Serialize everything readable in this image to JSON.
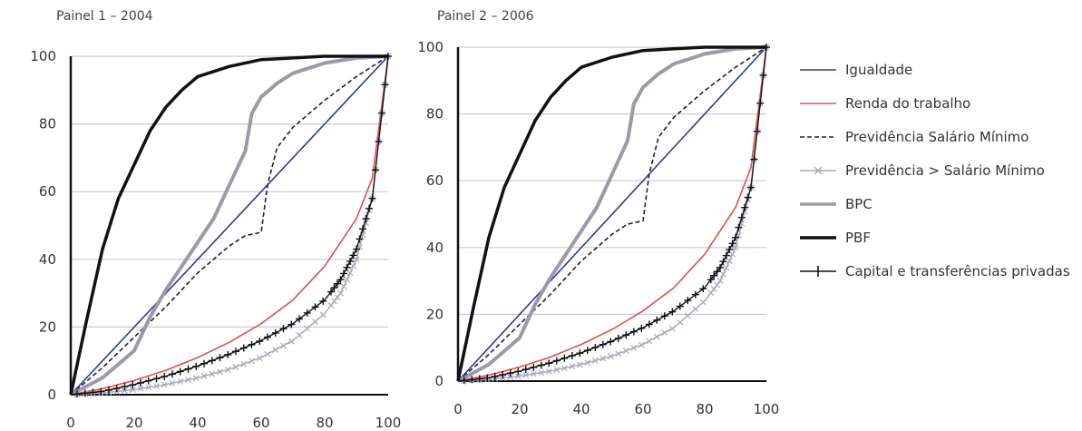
{
  "panels": [
    {
      "title": "Painel 1 – 2004"
    },
    {
      "title": "Painel 2 – 2006"
    }
  ],
  "chart_data": [
    {
      "type": "line",
      "title": "Painel 1 – 2004",
      "xlabel": "",
      "ylabel": "",
      "xlim": [
        0,
        100
      ],
      "ylim": [
        0,
        100
      ],
      "x_ticks": [
        0,
        20,
        40,
        60,
        80,
        100
      ],
      "y_ticks": [
        0,
        20,
        40,
        60,
        80,
        100
      ],
      "grid": true,
      "series": [
        {
          "name": "Igualdade",
          "x": [
            0,
            100
          ],
          "y": [
            0,
            100
          ]
        },
        {
          "name": "Renda do trabalho",
          "x": [
            0,
            10,
            20,
            30,
            40,
            50,
            60,
            70,
            80,
            90,
            95,
            100
          ],
          "y": [
            0,
            1.8,
            4.2,
            7.2,
            11,
            15.5,
            21,
            28,
            38,
            52,
            64,
            100
          ]
        },
        {
          "name": "Previdência Salário Mínimo",
          "x": [
            0,
            10,
            20,
            30,
            40,
            50,
            55,
            60,
            62,
            65,
            70,
            80,
            90,
            100
          ],
          "y": [
            0,
            8,
            17,
            26,
            36,
            44,
            47,
            48,
            62,
            73,
            79,
            87,
            94,
            100
          ]
        },
        {
          "name": "Previdência > Salário Mínimo",
          "x": [
            0,
            10,
            20,
            30,
            40,
            50,
            60,
            70,
            80,
            85,
            90,
            95,
            100
          ],
          "y": [
            0,
            0.5,
            1.5,
            3,
            5,
            7.5,
            11,
            16,
            24,
            30,
            40,
            58,
            100
          ]
        },
        {
          "name": "BPC",
          "x": [
            0,
            10,
            20,
            25,
            30,
            35,
            40,
            45,
            50,
            55,
            57,
            60,
            65,
            70,
            80,
            90,
            100
          ],
          "y": [
            0,
            5,
            13,
            23,
            31,
            38,
            45,
            52,
            62,
            72,
            83,
            88,
            92,
            95,
            98,
            99.5,
            100
          ]
        },
        {
          "name": "PBF",
          "x": [
            0,
            5,
            10,
            15,
            20,
            25,
            30,
            35,
            40,
            50,
            60,
            70,
            80,
            90,
            100
          ],
          "y": [
            0,
            22,
            43,
            58,
            68,
            78,
            85,
            90,
            94,
            97,
            99,
            99.5,
            100,
            100,
            100
          ]
        },
        {
          "name": "Capital e transferências privadas",
          "x": [
            0,
            10,
            20,
            30,
            40,
            50,
            60,
            70,
            80,
            85,
            90,
            95,
            100
          ],
          "y": [
            0,
            1,
            3,
            5.5,
            8.5,
            12,
            16,
            21,
            28,
            34,
            43,
            58,
            100
          ]
        }
      ]
    },
    {
      "type": "line",
      "title": "Painel 2 – 2006",
      "xlabel": "",
      "ylabel": "",
      "xlim": [
        0,
        100
      ],
      "ylim": [
        0,
        100
      ],
      "x_ticks": [
        0,
        20,
        40,
        60,
        80,
        100
      ],
      "y_ticks": [
        0,
        20,
        40,
        60,
        80,
        100
      ],
      "grid": true,
      "series": [
        {
          "name": "Igualdade",
          "x": [
            0,
            100
          ],
          "y": [
            0,
            100
          ]
        },
        {
          "name": "Renda do trabalho",
          "x": [
            0,
            10,
            20,
            30,
            40,
            50,
            60,
            70,
            80,
            90,
            95,
            100
          ],
          "y": [
            0,
            1.8,
            4.2,
            7.2,
            11,
            15.5,
            21,
            28,
            38,
            52,
            64,
            100
          ]
        },
        {
          "name": "Previdência Salário Mínimo",
          "x": [
            0,
            10,
            20,
            30,
            40,
            50,
            55,
            60,
            62,
            65,
            70,
            80,
            90,
            100
          ],
          "y": [
            0,
            8,
            17,
            26,
            36,
            44,
            47,
            48,
            62,
            73,
            79,
            87,
            94,
            100
          ]
        },
        {
          "name": "Previdência > Salário Mínimo",
          "x": [
            0,
            10,
            20,
            30,
            40,
            50,
            60,
            70,
            80,
            85,
            90,
            95,
            100
          ],
          "y": [
            0,
            0.5,
            1.5,
            3,
            5,
            7.5,
            11,
            16,
            24,
            30,
            40,
            58,
            100
          ]
        },
        {
          "name": "BPC",
          "x": [
            0,
            10,
            20,
            25,
            30,
            35,
            40,
            45,
            50,
            55,
            57,
            60,
            65,
            70,
            80,
            90,
            100
          ],
          "y": [
            0,
            5,
            13,
            23,
            31,
            38,
            45,
            52,
            62,
            72,
            83,
            88,
            92,
            95,
            98,
            99.5,
            100
          ]
        },
        {
          "name": "PBF",
          "x": [
            0,
            5,
            10,
            15,
            20,
            25,
            30,
            35,
            40,
            50,
            60,
            70,
            80,
            90,
            100
          ],
          "y": [
            0,
            22,
            43,
            58,
            68,
            78,
            85,
            90,
            94,
            97,
            99,
            99.5,
            100,
            100,
            100
          ]
        },
        {
          "name": "Capital e transferências privadas",
          "x": [
            0,
            10,
            20,
            30,
            40,
            50,
            60,
            70,
            80,
            85,
            90,
            95,
            100
          ],
          "y": [
            0,
            1,
            3,
            5.5,
            8.5,
            12,
            16,
            21,
            28,
            34,
            43,
            58,
            100
          ]
        }
      ]
    }
  ],
  "styles": [
    {
      "name": "Igualdade",
      "color": "#2b3a8f",
      "dash": "",
      "width": 1.6,
      "marker": ""
    },
    {
      "name": "Renda do trabalho",
      "color": "#e0504a",
      "dash": "",
      "width": 1.6,
      "marker": ""
    },
    {
      "name": "Previdência Salário Mínimo",
      "color": "#222222",
      "dash": "5,3",
      "width": 1.6,
      "marker": ""
    },
    {
      "name": "Previdência > Salário Mínimo",
      "color": "#a8a8bd",
      "dash": "",
      "width": 1.4,
      "marker": "x"
    },
    {
      "name": "BPC",
      "color": "#9a9aa8",
      "dash": "",
      "width": 4,
      "marker": ""
    },
    {
      "name": "PBF",
      "color": "#111111",
      "dash": "",
      "width": 3.5,
      "marker": ""
    },
    {
      "name": "Capital e transferências privadas",
      "color": "#111111",
      "dash": "",
      "width": 1.4,
      "marker": "+"
    }
  ],
  "legend": [
    {
      "label": "Igualdade",
      "color": "#2b3a8f"
    },
    {
      "label": "Renda do trabalho",
      "color": "#e0504a"
    },
    {
      "label": "Previdência Salário Mínimo",
      "color": "#222222"
    },
    {
      "label": "Previdência > Salário Mínimo",
      "color": "#a8a8bd"
    },
    {
      "label": "BPC",
      "color": "#888888"
    },
    {
      "label": "PBF",
      "color": "#111111"
    },
    {
      "label": "Capital e transferências privadas",
      "color": "#111111"
    }
  ]
}
